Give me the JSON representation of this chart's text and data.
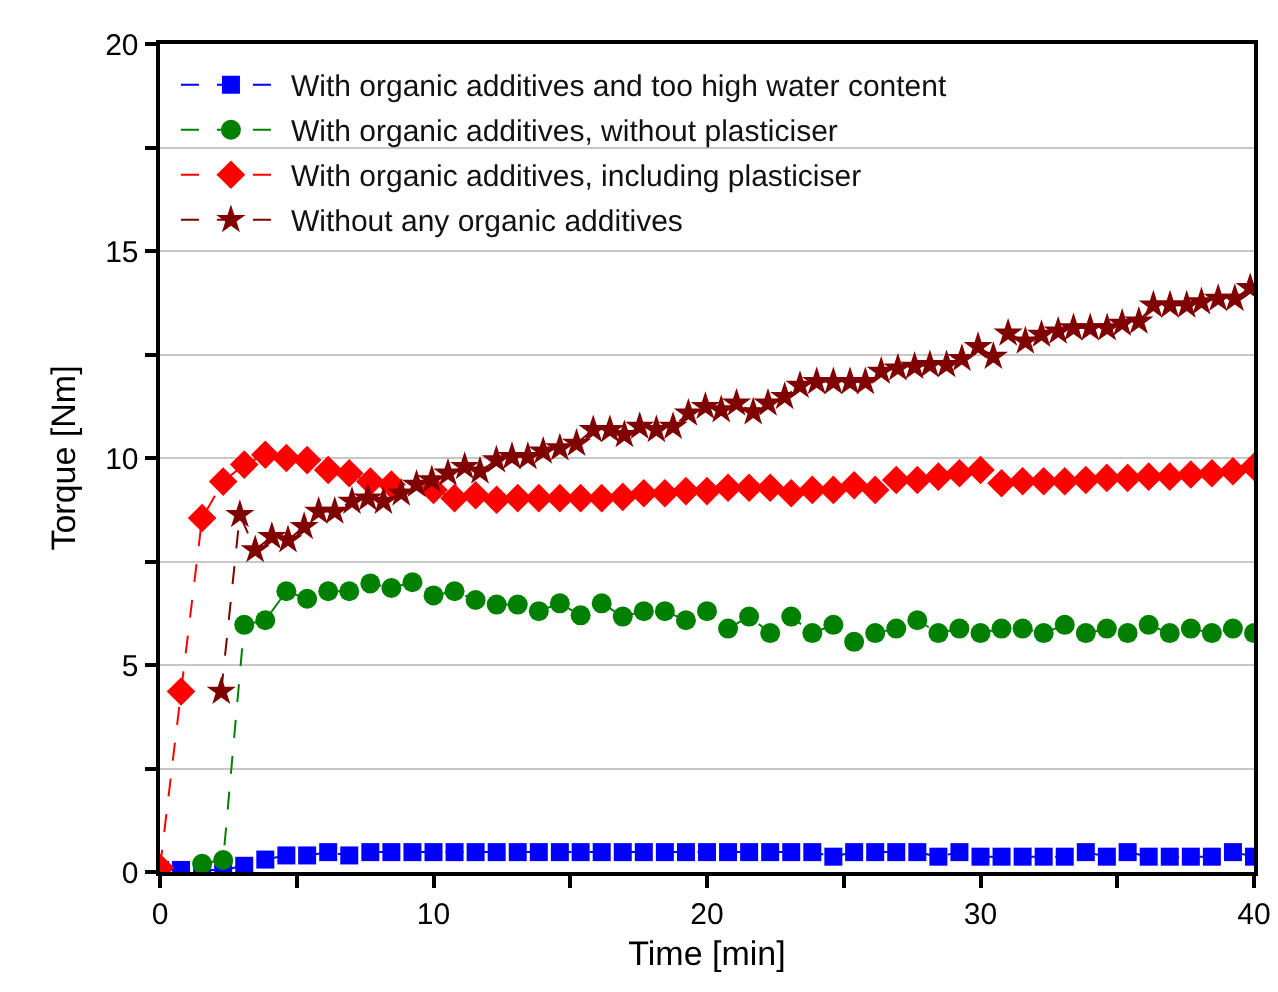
{
  "chart_data": {
    "type": "line",
    "xlabel": "Time [min]",
    "ylabel": "Torque [Nm]",
    "xlim": [
      0,
      40
    ],
    "xticks": [
      0,
      {
        "value": 5,
        "label": null
      },
      10,
      {
        "value": 15,
        "label": null
      },
      20,
      {
        "value": 25,
        "label": null
      },
      30,
      {
        "value": 35,
        "label": null
      },
      40
    ],
    "ylim": [
      0,
      20
    ],
    "yticks": [
      0,
      {
        "value": 2.5,
        "label": null
      },
      5,
      {
        "value": 7.5,
        "label": null
      },
      10,
      {
        "value": 12.5,
        "label": null
      },
      15,
      {
        "value": 17.5,
        "label": null
      },
      20
    ],
    "grid": "y",
    "legend": "top left",
    "line_style": "dashed",
    "x": [
      0,
      0.77,
      1.54,
      2.31,
      3.08,
      3.85,
      4.62,
      5.38,
      6.15,
      6.92,
      7.69,
      8.46,
      9.23,
      10,
      10.77,
      11.54,
      12.31,
      13.08,
      13.85,
      14.62,
      15.38,
      16.15,
      16.92,
      17.69,
      18.46,
      19.23,
      20,
      20.77,
      21.54,
      22.31,
      23.08,
      23.85,
      24.62,
      25.38,
      26.15,
      26.92,
      27.69,
      28.46,
      29.23,
      30,
      30.77,
      31.54,
      32.31,
      33.08,
      33.85,
      34.62,
      35.38,
      36.15,
      36.92,
      37.69,
      38.46,
      39.23,
      40
    ],
    "series": [
      {
        "name": "With organic additives and too high water content",
        "color": "#0000ff",
        "marker": "square",
        "values": [
          0.05,
          0.05,
          0.05,
          0.05,
          0.15,
          0.3,
          0.4,
          0.4,
          0.48,
          0.4,
          0.48,
          0.48,
          0.48,
          0.48,
          0.48,
          0.48,
          0.48,
          0.48,
          0.48,
          0.48,
          0.48,
          0.48,
          0.48,
          0.48,
          0.48,
          0.48,
          0.48,
          0.48,
          0.48,
          0.48,
          0.48,
          0.48,
          0.37,
          0.48,
          0.48,
          0.48,
          0.48,
          0.37,
          0.48,
          0.37,
          0.37,
          0.37,
          0.37,
          0.37,
          0.48,
          0.37,
          0.48,
          0.37,
          0.37,
          0.37,
          0.37,
          0.48,
          0.37
        ]
      },
      {
        "name": "With organic additives, without plasticiser",
        "color": "#008000",
        "marker": "circle",
        "values": [
          null,
          null,
          0.2,
          0.29,
          5.97,
          6.08,
          6.78,
          6.6,
          6.78,
          6.78,
          6.97,
          6.86,
          7.0,
          6.68,
          6.78,
          6.57,
          6.46,
          6.46,
          6.3,
          6.49,
          6.2,
          6.49,
          6.17,
          6.3,
          6.3,
          6.08,
          6.3,
          5.88,
          6.17,
          5.77,
          6.17,
          5.77,
          5.97,
          5.56,
          5.77,
          5.88,
          6.08,
          5.77,
          5.88,
          5.77,
          5.88,
          5.88,
          5.77,
          5.97,
          5.77,
          5.88,
          5.77,
          5.97,
          5.77,
          5.88,
          5.77,
          5.88,
          5.77
        ]
      },
      {
        "name": "With organic additives, including plasticiser",
        "color": "#ff0000",
        "marker": "diamond",
        "values": [
          0.1,
          4.36,
          8.55,
          9.43,
          9.84,
          10.08,
          10.0,
          9.95,
          9.71,
          9.63,
          9.43,
          9.36,
          null,
          9.23,
          9.03,
          9.1,
          8.99,
          9.03,
          9.03,
          9.03,
          9.03,
          9.03,
          9.06,
          9.15,
          9.15,
          9.2,
          9.2,
          9.28,
          9.28,
          9.28,
          9.15,
          9.23,
          9.23,
          9.34,
          9.23,
          9.47,
          9.47,
          9.55,
          9.63,
          9.71,
          9.39,
          9.44,
          9.44,
          9.44,
          9.47,
          9.52,
          9.52,
          9.55,
          9.55,
          9.6,
          9.63,
          9.68,
          9.79
        ]
      },
      {
        "name": "Without any organic additives",
        "color": "#800000",
        "marker": "star",
        "x": [
          2.24,
          2.92,
          3.48,
          4.09,
          4.68,
          5.27,
          5.8,
          6.39,
          7.02,
          7.6,
          8.17,
          8.82,
          9.38,
          9.94,
          10.53,
          11.14,
          11.7,
          12.3,
          12.87,
          13.45,
          14.01,
          14.62,
          15.23,
          15.84,
          16.45,
          16.98,
          17.54,
          18.15,
          18.76,
          19.32,
          19.94,
          20.52,
          21.08,
          21.69,
          22.23,
          22.84,
          23.4,
          24.01,
          24.62,
          25.23,
          25.79,
          26.37,
          26.98,
          27.59,
          28.15,
          28.76,
          29.32,
          29.91,
          30.47,
          31.01,
          31.64,
          32.23,
          32.84,
          33.4,
          34.01,
          34.63,
          35.18,
          35.79,
          36.32,
          36.93,
          37.54,
          38.08,
          38.69,
          39.3,
          39.86
        ],
        "values": [
          4.36,
          8.63,
          7.78,
          8.1,
          8.02,
          8.34,
          8.71,
          8.71,
          8.95,
          9.03,
          8.95,
          9.15,
          9.36,
          9.47,
          9.63,
          9.79,
          9.68,
          9.95,
          10.03,
          10.03,
          10.16,
          10.24,
          10.35,
          10.68,
          10.68,
          10.56,
          10.76,
          10.68,
          10.76,
          11.08,
          11.24,
          11.16,
          11.32,
          11.11,
          11.32,
          11.48,
          11.75,
          11.84,
          11.84,
          11.84,
          11.84,
          12.09,
          12.17,
          12.21,
          12.25,
          12.25,
          12.4,
          12.69,
          12.45,
          13.01,
          12.82,
          12.98,
          13.06,
          13.14,
          13.14,
          13.14,
          13.25,
          13.3,
          13.69,
          13.69,
          13.69,
          13.77,
          13.85,
          13.85,
          14.11
        ]
      }
    ]
  }
}
